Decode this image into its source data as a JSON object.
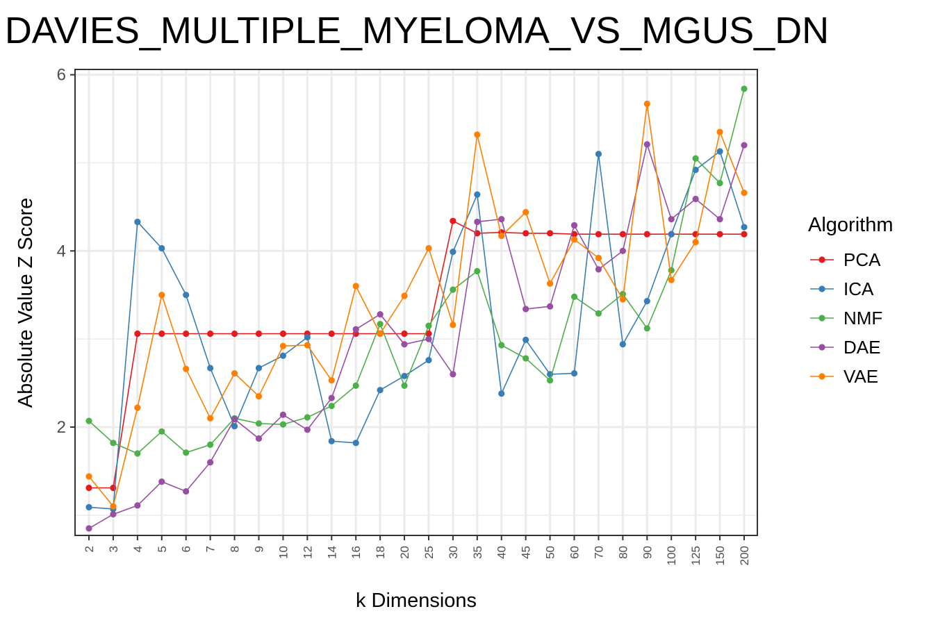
{
  "chart_data": {
    "type": "line",
    "title": "DAVIES_MULTIPLE_MYELOMA_VS_MGUS_DN",
    "xlabel": "k Dimensions",
    "ylabel": "Absolute Value Z Score",
    "categories": [
      "2",
      "3",
      "4",
      "5",
      "6",
      "7",
      "8",
      "9",
      "10",
      "12",
      "14",
      "16",
      "18",
      "20",
      "25",
      "30",
      "35",
      "40",
      "45",
      "50",
      "60",
      "70",
      "80",
      "90",
      "100",
      "125",
      "150",
      "200"
    ],
    "yticks": [
      2,
      4,
      6
    ],
    "ylim": [
      0.77,
      6.06
    ],
    "grid": true,
    "legend": {
      "title": "Algorithm",
      "placement": "right"
    },
    "series": [
      {
        "name": "PCA",
        "color": "#e41a1c",
        "values": [
          1.31,
          1.31,
          3.06,
          3.06,
          3.06,
          3.06,
          3.06,
          3.06,
          3.06,
          3.06,
          3.06,
          3.06,
          3.06,
          3.06,
          3.06,
          4.34,
          4.2,
          4.21,
          4.2,
          4.2,
          4.19,
          4.19,
          4.19,
          4.19,
          4.19,
          4.19,
          4.19,
          4.19
        ]
      },
      {
        "name": "ICA",
        "color": "#377eb8",
        "values": [
          1.09,
          1.07,
          4.33,
          4.03,
          3.5,
          2.67,
          2.01,
          2.67,
          2.81,
          3.02,
          1.84,
          1.82,
          2.42,
          2.58,
          2.76,
          3.99,
          4.64,
          2.38,
          2.99,
          2.6,
          2.61,
          5.1,
          2.94,
          3.43,
          4.19,
          4.92,
          5.13,
          4.27
        ]
      },
      {
        "name": "NMF",
        "color": "#4daf4a",
        "values": [
          2.07,
          1.82,
          1.7,
          1.95,
          1.71,
          1.8,
          2.1,
          2.04,
          2.03,
          2.11,
          2.24,
          2.47,
          3.17,
          2.47,
          3.15,
          3.56,
          3.77,
          2.93,
          2.78,
          2.53,
          3.48,
          3.29,
          3.51,
          3.12,
          3.78,
          5.05,
          4.77,
          5.84
        ]
      },
      {
        "name": "DAE",
        "color": "#984ea3",
        "values": [
          0.85,
          1.01,
          1.11,
          1.38,
          1.27,
          1.6,
          2.09,
          1.87,
          2.14,
          1.97,
          2.33,
          3.11,
          3.28,
          2.94,
          3.0,
          2.6,
          4.33,
          4.36,
          3.34,
          3.37,
          4.29,
          3.79,
          4.0,
          5.21,
          4.36,
          4.59,
          4.36,
          5.2
        ]
      },
      {
        "name": "VAE",
        "color": "#ff7f00",
        "values": [
          1.44,
          1.1,
          2.22,
          3.5,
          2.66,
          2.1,
          2.61,
          2.35,
          2.92,
          2.93,
          2.53,
          3.6,
          3.06,
          3.49,
          4.03,
          3.16,
          5.32,
          4.17,
          4.44,
          3.63,
          4.13,
          3.92,
          3.45,
          5.67,
          3.67,
          4.1,
          5.35,
          4.66
        ]
      }
    ]
  }
}
